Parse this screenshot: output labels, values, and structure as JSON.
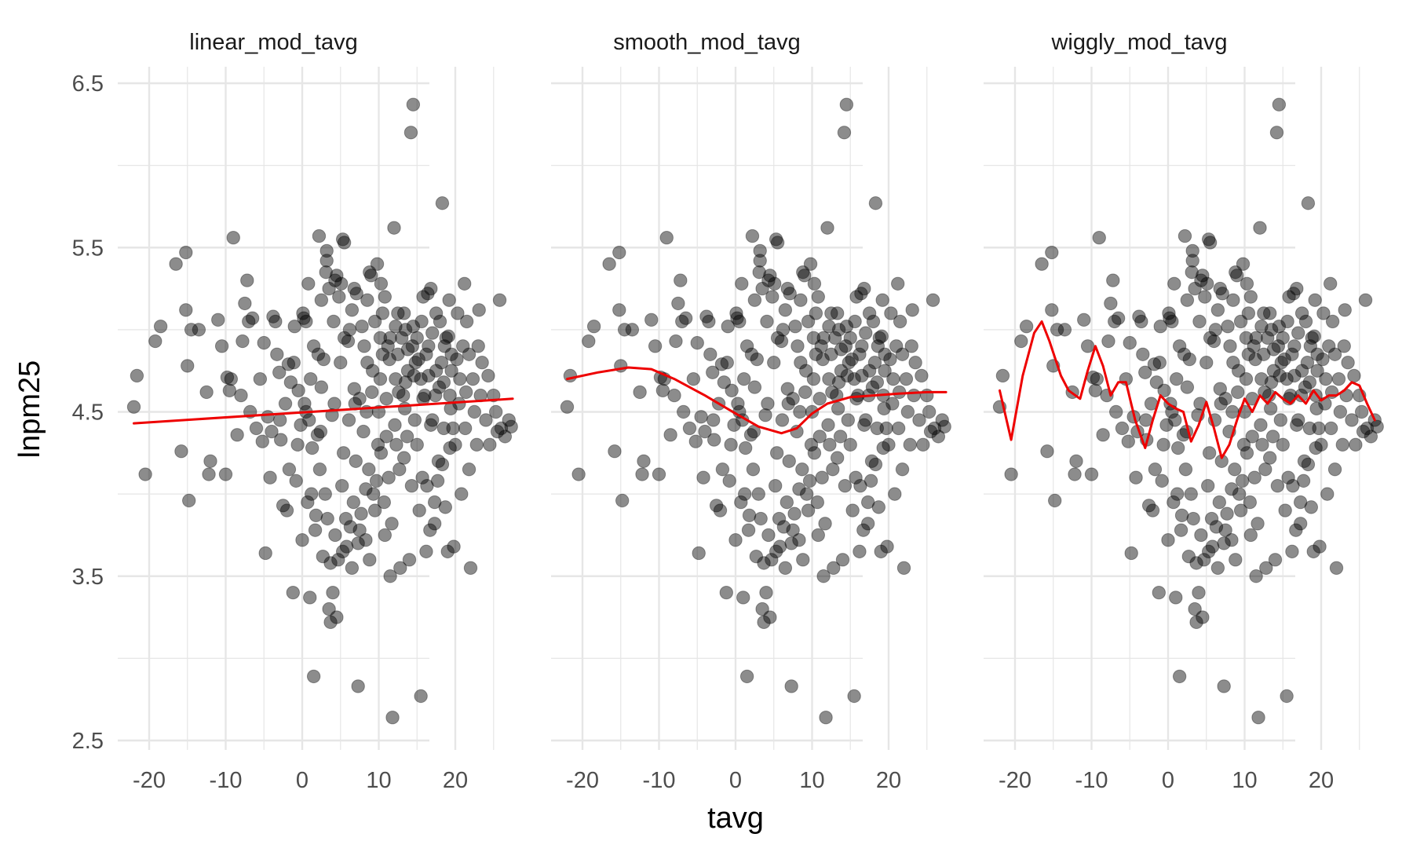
{
  "chart_data": {
    "type": "scatter",
    "xlabel": "tavg",
    "ylabel": "lnpm25",
    "xlim": [
      -24,
      28
    ],
    "ylim": [
      2.45,
      6.6
    ],
    "x_ticks": [
      -20,
      -10,
      0,
      10,
      20
    ],
    "x_tick_labels": [
      "-20",
      "-10",
      "0",
      "10",
      "20"
    ],
    "y_ticks": [
      2.5,
      3.5,
      4.5,
      5.5,
      6.5
    ],
    "y_tick_labels": [
      "2.5",
      "3.5",
      "4.5",
      "5.5",
      "6.5"
    ],
    "y_minor_grid": [
      3.0,
      4.0,
      5.0,
      6.0
    ],
    "x_minor_grid": [
      -15,
      -5,
      5,
      15,
      25
    ],
    "grid": true,
    "point_color": "#000000",
    "point_opacity": 0.45,
    "line_color": "#ee0000",
    "grid_color": "#e6e6e6",
    "panels": [
      {
        "title": "linear_mod_tavg",
        "fit": [
          [
            -22,
            4.43
          ],
          [
            27.5,
            4.58
          ]
        ]
      },
      {
        "title": "smooth_mod_tavg",
        "fit": [
          [
            -22,
            4.7
          ],
          [
            -18,
            4.74
          ],
          [
            -14,
            4.77
          ],
          [
            -11,
            4.76
          ],
          [
            -8,
            4.7
          ],
          [
            -4,
            4.6
          ],
          [
            0,
            4.49
          ],
          [
            3,
            4.41
          ],
          [
            6,
            4.37
          ],
          [
            8,
            4.4
          ],
          [
            10,
            4.49
          ],
          [
            12,
            4.55
          ],
          [
            15,
            4.59
          ],
          [
            18,
            4.6
          ],
          [
            21,
            4.61
          ],
          [
            25,
            4.62
          ],
          [
            27.5,
            4.62
          ]
        ]
      },
      {
        "title": "wiggly_mod_tavg",
        "fit": [
          [
            -22,
            4.63
          ],
          [
            -20.5,
            4.33
          ],
          [
            -19,
            4.72
          ],
          [
            -17.5,
            4.98
          ],
          [
            -16.5,
            5.05
          ],
          [
            -15.5,
            4.93
          ],
          [
            -14,
            4.72
          ],
          [
            -13,
            4.63
          ],
          [
            -11.5,
            4.58
          ],
          [
            -10.5,
            4.75
          ],
          [
            -9.5,
            4.9
          ],
          [
            -8.5,
            4.78
          ],
          [
            -7.5,
            4.6
          ],
          [
            -6.5,
            4.68
          ],
          [
            -5.5,
            4.68
          ],
          [
            -4.3,
            4.45
          ],
          [
            -3,
            4.28
          ],
          [
            -2,
            4.45
          ],
          [
            -1,
            4.6
          ],
          [
            0,
            4.55
          ],
          [
            1,
            4.52
          ],
          [
            2,
            4.5
          ],
          [
            3,
            4.32
          ],
          [
            4,
            4.42
          ],
          [
            5,
            4.56
          ],
          [
            6,
            4.4
          ],
          [
            7,
            4.22
          ],
          [
            8,
            4.3
          ],
          [
            9,
            4.45
          ],
          [
            10,
            4.58
          ],
          [
            11,
            4.5
          ],
          [
            12,
            4.6
          ],
          [
            13,
            4.55
          ],
          [
            14,
            4.62
          ],
          [
            15,
            4.58
          ],
          [
            16,
            4.55
          ],
          [
            17,
            4.6
          ],
          [
            18,
            4.55
          ],
          [
            19,
            4.63
          ],
          [
            20,
            4.57
          ],
          [
            21,
            4.6
          ],
          [
            22,
            4.6
          ],
          [
            23,
            4.63
          ],
          [
            24,
            4.68
          ],
          [
            25,
            4.66
          ],
          [
            26,
            4.55
          ],
          [
            27,
            4.45
          ]
        ]
      }
    ],
    "points": [
      [
        -22,
        4.53
      ],
      [
        -21.6,
        4.72
      ],
      [
        -20.5,
        4.12
      ],
      [
        -19.2,
        4.93
      ],
      [
        -18.5,
        5.02
      ],
      [
        -16.5,
        5.4
      ],
      [
        -15.8,
        4.26
      ],
      [
        -15.2,
        5.47
      ],
      [
        -15.2,
        5.12
      ],
      [
        -15,
        4.78
      ],
      [
        -14.8,
        3.96
      ],
      [
        -14.5,
        5.0
      ],
      [
        -13.5,
        5.0
      ],
      [
        -12.5,
        4.62
      ],
      [
        -12.2,
        4.12
      ],
      [
        -12,
        4.2
      ],
      [
        -11,
        5.06
      ],
      [
        -10.5,
        4.9
      ],
      [
        -10,
        4.12
      ],
      [
        -9.8,
        4.71
      ],
      [
        -9.5,
        4.63
      ],
      [
        -9.3,
        4.7
      ],
      [
        -9,
        5.56
      ],
      [
        -8.5,
        4.36
      ],
      [
        -8,
        4.6
      ],
      [
        -7.8,
        4.93
      ],
      [
        -7.5,
        5.16
      ],
      [
        -7.2,
        5.3
      ],
      [
        -7,
        5.05
      ],
      [
        -6.5,
        5.07
      ],
      [
        -6,
        4.4
      ],
      [
        -5.5,
        4.7
      ],
      [
        -5,
        4.92
      ],
      [
        -4.8,
        3.64
      ],
      [
        -4.5,
        4.47
      ],
      [
        -4,
        4.38
      ],
      [
        -3.8,
        5.08
      ],
      [
        -3.5,
        5.05
      ],
      [
        -3,
        4.74
      ],
      [
        -2.8,
        4.33
      ],
      [
        -2.5,
        3.93
      ],
      [
        -2,
        3.9
      ],
      [
        -1.8,
        4.79
      ],
      [
        -1.5,
        4.68
      ],
      [
        -1.2,
        3.4
      ],
      [
        -1,
        5.02
      ],
      [
        -0.8,
        4.08
      ],
      [
        -0.5,
        4.63
      ],
      [
        -0.2,
        4.42
      ],
      [
        0,
        3.72
      ],
      [
        0.2,
        5.07
      ],
      [
        0.5,
        4.5
      ],
      [
        0.8,
        5.28
      ],
      [
        1,
        3.37
      ],
      [
        1.2,
        4.0
      ],
      [
        1.5,
        2.89
      ],
      [
        1.8,
        3.87
      ],
      [
        2,
        4.36
      ],
      [
        2.2,
        5.57
      ],
      [
        2.5,
        5.18
      ],
      [
        2.8,
        4.82
      ],
      [
        3,
        4.0
      ],
      [
        3.2,
        5.48
      ],
      [
        3.5,
        3.3
      ],
      [
        3.7,
        3.22
      ],
      [
        4,
        3.4
      ],
      [
        4.2,
        4.55
      ],
      [
        4.5,
        3.25
      ],
      [
        4.8,
        5.2
      ],
      [
        5,
        4.8
      ],
      [
        5.2,
        4.05
      ],
      [
        5.5,
        5.53
      ],
      [
        5.8,
        3.68
      ],
      [
        6,
        4.93
      ],
      [
        6.2,
        5.0
      ],
      [
        6.5,
        3.55
      ],
      [
        6.8,
        4.64
      ],
      [
        7,
        4.2
      ],
      [
        7.3,
        2.83
      ],
      [
        7.5,
        3.78
      ],
      [
        7.8,
        5.02
      ],
      [
        8,
        4.38
      ],
      [
        8.3,
        4.03
      ],
      [
        8.5,
        4.8
      ],
      [
        8.8,
        3.6
      ],
      [
        9,
        5.33
      ],
      [
        9.2,
        4.75
      ],
      [
        9.5,
        3.9
      ],
      [
        9.8,
        5.4
      ],
      [
        10,
        4.5
      ],
      [
        10.2,
        4.7
      ],
      [
        10.5,
        5.1
      ],
      [
        10.8,
        3.75
      ],
      [
        11,
        4.35
      ],
      [
        11.2,
        4.9
      ],
      [
        11.5,
        3.5
      ],
      [
        11.8,
        2.64
      ],
      [
        12,
        5.62
      ],
      [
        12.2,
        4.7
      ],
      [
        12.5,
        4.85
      ],
      [
        12.8,
        3.55
      ],
      [
        13,
        4.95
      ],
      [
        13.2,
        4.6
      ],
      [
        13.5,
        5.0
      ],
      [
        13.8,
        4.75
      ],
      [
        14,
        3.6
      ],
      [
        14.2,
        6.2
      ],
      [
        14.5,
        6.37
      ],
      [
        14.8,
        4.8
      ],
      [
        15,
        4.3
      ],
      [
        15.2,
        4.82
      ],
      [
        15.5,
        2.77
      ],
      [
        15.8,
        5.2
      ],
      [
        16,
        4.6
      ],
      [
        16.2,
        3.65
      ],
      [
        16.5,
        4.9
      ],
      [
        16.8,
        5.25
      ],
      [
        17,
        4.45
      ],
      [
        17.3,
        3.95
      ],
      [
        17.5,
        4.75
      ],
      [
        17.8,
        4.2
      ],
      [
        18,
        5.05
      ],
      [
        18.3,
        5.77
      ],
      [
        18.5,
        4.4
      ],
      [
        18.8,
        4.95
      ],
      [
        19,
        3.65
      ],
      [
        19.3,
        4.6
      ],
      [
        19.5,
        4.85
      ],
      [
        19.8,
        3.68
      ],
      [
        20,
        4.3
      ],
      [
        20.3,
        5.1
      ],
      [
        20.5,
        4.55
      ],
      [
        20.8,
        4.0
      ],
      [
        21,
        4.9
      ],
      [
        21.3,
        4.4
      ],
      [
        21.5,
        5.05
      ],
      [
        21.8,
        4.15
      ],
      [
        22,
        3.55
      ],
      [
        22.3,
        4.7
      ],
      [
        22.5,
        4.5
      ],
      [
        22.8,
        4.3
      ],
      [
        23,
        4.9
      ],
      [
        23.3,
        4.6
      ],
      [
        23.5,
        4.8
      ],
      [
        24,
        4.45
      ],
      [
        24.3,
        4.72
      ],
      [
        24.5,
        4.3
      ],
      [
        25,
        4.6
      ],
      [
        25.3,
        4.5
      ],
      [
        25.5,
        4.38
      ],
      [
        25.8,
        5.18
      ],
      [
        26,
        4.4
      ],
      [
        26.5,
        4.35
      ],
      [
        27,
        4.45
      ],
      [
        27.3,
        4.41
      ],
      [
        0.3,
        4.55
      ],
      [
        1.3,
        4.28
      ],
      [
        2.3,
        4.15
      ],
      [
        3.3,
        3.85
      ],
      [
        4.3,
        3.75
      ],
      [
        5.3,
        3.65
      ],
      [
        6.3,
        3.8
      ],
      [
        7.3,
        3.7
      ],
      [
        8.3,
        3.72
      ],
      [
        9.3,
        4.0
      ],
      [
        10.3,
        4.25
      ],
      [
        11.3,
        4.1
      ],
      [
        12.3,
        4.3
      ],
      [
        13.3,
        4.22
      ],
      [
        14.3,
        4.05
      ],
      [
        15.3,
        3.9
      ],
      [
        16.3,
        4.05
      ],
      [
        17.3,
        3.82
      ],
      [
        18.3,
        4.18
      ],
      [
        19.3,
        4.28
      ],
      [
        0.7,
        3.95
      ],
      [
        1.7,
        3.78
      ],
      [
        2.7,
        3.62
      ],
      [
        3.7,
        3.58
      ],
      [
        4.7,
        3.6
      ],
      [
        5.7,
        3.85
      ],
      [
        6.7,
        3.95
      ],
      [
        7.7,
        3.88
      ],
      [
        8.7,
        4.15
      ],
      [
        9.7,
        4.08
      ],
      [
        10.7,
        3.95
      ],
      [
        11.7,
        3.82
      ],
      [
        12.7,
        4.15
      ],
      [
        13.7,
        4.35
      ],
      [
        14.7,
        4.45
      ],
      [
        15.7,
        4.1
      ],
      [
        16.7,
        3.78
      ],
      [
        17.7,
        4.08
      ],
      [
        18.7,
        3.92
      ],
      [
        19.7,
        4.4
      ],
      [
        0.5,
        5.05
      ],
      [
        1.5,
        4.9
      ],
      [
        2.5,
        4.65
      ],
      [
        3.5,
        5.25
      ],
      [
        4.5,
        5.33
      ],
      [
        5.5,
        4.95
      ],
      [
        6.5,
        5.12
      ],
      [
        7.5,
        4.58
      ],
      [
        8.5,
        5.18
      ],
      [
        9.5,
        5.05
      ],
      [
        10.5,
        4.85
      ],
      [
        11.5,
        4.95
      ],
      [
        12.5,
        5.1
      ],
      [
        13.5,
        4.68
      ],
      [
        14.5,
        5.02
      ],
      [
        15.5,
        4.7
      ],
      [
        16.5,
        4.72
      ],
      [
        17.5,
        5.1
      ],
      [
        18.5,
        4.68
      ],
      [
        19.5,
        4.75
      ],
      [
        10.2,
        4.95
      ],
      [
        11.4,
        4.82
      ],
      [
        12.6,
        4.62
      ],
      [
        13.8,
        4.88
      ],
      [
        15,
        4.95
      ],
      [
        16.2,
        4.85
      ],
      [
        17.4,
        4.6
      ],
      [
        18.6,
        4.9
      ],
      [
        11,
        4.58
      ],
      [
        12.2,
        5.02
      ],
      [
        13.4,
        4.52
      ],
      [
        14.6,
        4.72
      ],
      [
        15.8,
        4.58
      ],
      [
        17,
        4.98
      ],
      [
        18.2,
        4.8
      ],
      [
        19.4,
        4.52
      ],
      [
        20.6,
        4.7
      ],
      [
        21.8,
        4.85
      ],
      [
        10.8,
        5.2
      ],
      [
        12.1,
        4.42
      ],
      [
        13.3,
        5.1
      ],
      [
        14.4,
        4.9
      ],
      [
        15.6,
        5.05
      ],
      [
        16.8,
        4.42
      ],
      [
        17.9,
        4.65
      ],
      [
        19.1,
        4.96
      ],
      [
        20.2,
        4.82
      ],
      [
        21.4,
        4.62
      ],
      [
        -3.3,
        4.85
      ],
      [
        -2.2,
        4.55
      ],
      [
        -1.1,
        4.8
      ],
      [
        0.1,
        5.1
      ],
      [
        1.1,
        4.7
      ],
      [
        2.1,
        4.85
      ],
      [
        3.1,
        5.35
      ],
      [
        4.1,
        5.05
      ],
      [
        5.1,
        5.28
      ],
      [
        6.1,
        4.45
      ],
      [
        7.1,
        5.22
      ],
      [
        8.1,
        4.9
      ],
      [
        9.1,
        4.62
      ],
      [
        -6.8,
        4.5
      ],
      [
        -5.2,
        4.32
      ],
      [
        -4.2,
        4.1
      ],
      [
        -2.9,
        4.45
      ],
      [
        -1.7,
        4.15
      ],
      [
        -0.6,
        4.3
      ],
      [
        0.9,
        4.45
      ],
      [
        2.4,
        4.38
      ],
      [
        3.9,
        4.48
      ],
      [
        5.4,
        4.25
      ],
      [
        6.9,
        4.55
      ],
      [
        8.4,
        4.5
      ],
      [
        9.9,
        4.3
      ],
      [
        3.2,
        5.42
      ],
      [
        5.3,
        5.55
      ],
      [
        4.3,
        5.3
      ],
      [
        6.8,
        5.25
      ],
      [
        8.8,
        5.35
      ],
      [
        10.3,
        5.28
      ],
      [
        16.4,
        5.22
      ],
      [
        19.2,
        5.18
      ],
      [
        21.2,
        5.28
      ],
      [
        23.1,
        5.12
      ]
    ]
  }
}
